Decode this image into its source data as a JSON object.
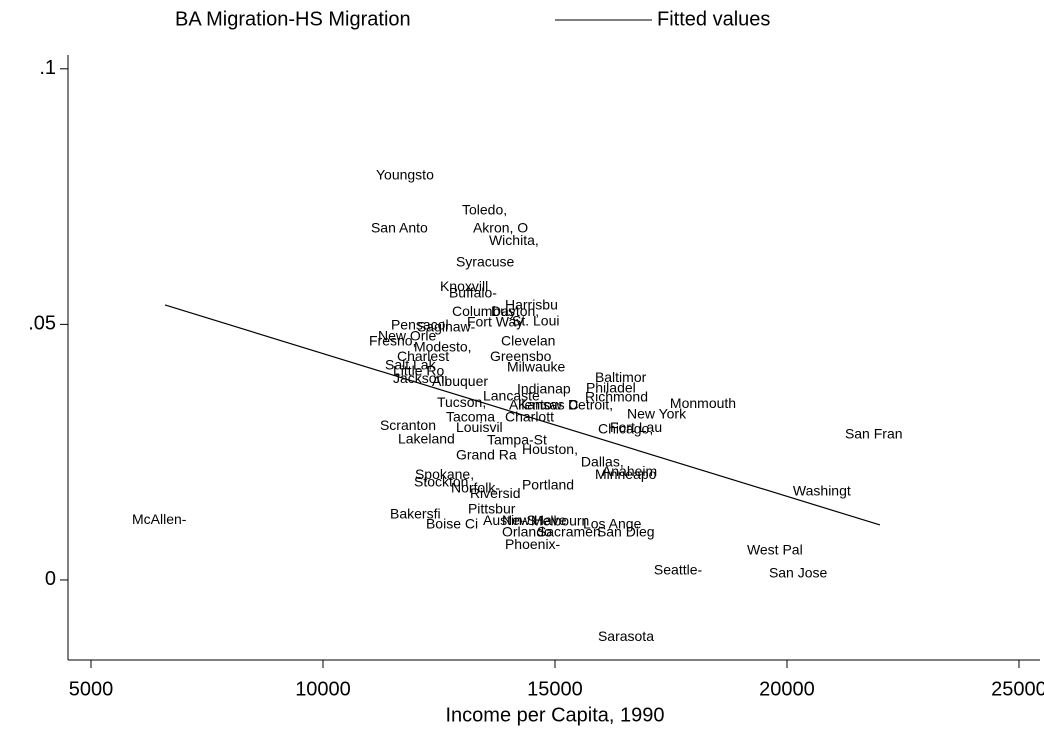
{
  "chart_data": {
    "type": "scatter",
    "x_label": "Income per Capita, 1990",
    "xlim": [
      4504,
      25453
    ],
    "ylim": [
      -0.01566,
      0.1027
    ],
    "xticks": [
      5000,
      10000,
      15000,
      20000,
      25000
    ],
    "yticks": [
      0,
      {
        "value": 0.05,
        "label": ".05"
      },
      {
        "value": 0.1,
        "label": ".1"
      }
    ],
    "series": [
      {
        "name": "BA Migration-HS Migration",
        "type": "scatter",
        "color": "#000000",
        "labels": [
          "Youngsto",
          "Toledo,",
          "San Anto",
          "Akron, O",
          "Wichita,",
          "Syracuse",
          "Knoxvill",
          "Buffalo-",
          "Harrisbu",
          "Columbus",
          "Dayton,",
          "Fort Way",
          "St. Loui",
          "Pensacol",
          "Saginaw-",
          "New Orle",
          "Fresno,",
          "Modesto,",
          "Clevelan",
          "Charlest",
          "Greensbo",
          "Salt Lak",
          "Milwauke",
          "Little Ro",
          "Jackson,",
          "Albuquer",
          "Baltimor",
          "Indianap",
          "Philadel",
          "Lancaste",
          "Richmond",
          "Tucson,",
          "Allentow",
          "Kansas C",
          "Detroit,",
          "Monmouth",
          "New York",
          "Tacoma",
          "Charlott",
          "Fort Lau",
          "Chicago,",
          "Scranton",
          "Louisvil",
          "San Fran",
          "Lakeland",
          "Tampa-St",
          "Houston,",
          "Grand Ra",
          "Dallas,",
          "Anaheim",
          "Minneapo",
          "Spokane,",
          "Stockton",
          "Norfolk-",
          "Portland",
          "Washingt",
          "Riversid",
          "McAllen-",
          "Pittsbur",
          "Bakersfi",
          "Austin-S",
          "Boise Ci",
          "New Have",
          "Melbourn",
          "Los Ange",
          "Orlando",
          "Sacramen",
          "San Dieg",
          "Phoenix-",
          "West Pal",
          "Seattle-",
          "San Jose",
          "Sarasota"
        ],
        "x": [
          11142,
          12995,
          11034,
          13232,
          13577,
          12866,
          12521,
          12715,
          13922,
          12780,
          13620,
          13103,
          14073,
          11465,
          12025,
          11185,
          10991,
          11961,
          13836,
          11594,
          13599,
          11336,
          13965,
          11508,
          11508,
          12349,
          15861,
          14180,
          15667,
          13448,
          15646,
          12456,
          14008,
          14202,
          15279,
          17477,
          16551,
          12650,
          13922,
          16185,
          15926,
          11228,
          12866,
          21249,
          11616,
          13534,
          14288,
          12866,
          15559,
          16012,
          15861,
          11982,
          11961,
          12758,
          14288,
          20128,
          13167,
          5884,
          13124,
          11444,
          13448,
          12219,
          13857,
          14482,
          15603,
          13857,
          14611,
          15904,
          13922,
          19137,
          17132,
          19611,
          15926
        ],
        "values": [
          0.0791,
          0.0722,
          0.0687,
          0.0687,
          0.0663,
          0.062,
          0.0573,
          0.056,
          0.0536,
          0.0524,
          0.0524,
          0.0503,
          0.0505,
          0.0497,
          0.0493,
          0.0476,
          0.0466,
          0.0454,
          0.0466,
          0.0436,
          0.0436,
          0.0419,
          0.0415,
          0.0407,
          0.0393,
          0.0387,
          0.0395,
          0.0372,
          0.0374,
          0.0358,
          0.0356,
          0.0346,
          0.0341,
          0.0341,
          0.0341,
          0.0344,
          0.0323,
          0.0317,
          0.0317,
          0.0297,
          0.0294,
          0.0301,
          0.0297,
          0.0284,
          0.0274,
          0.0272,
          0.0254,
          0.0243,
          0.0229,
          0.0211,
          0.0205,
          0.0205,
          0.019,
          0.0178,
          0.0184,
          0.0172,
          0.0168,
          0.0117,
          0.0137,
          0.0127,
          0.0115,
          0.0108,
          0.0115,
          0.0114,
          0.0108,
          0.0092,
          0.0092,
          0.0092,
          0.0068,
          0.0057,
          0.0018,
          0.0012,
          -0.0112
        ]
      },
      {
        "name": "Fitted values",
        "type": "line",
        "color": "#000000",
        "x": [
          6595,
          22004
        ],
        "values": [
          0.0538,
          0.01076
        ]
      }
    ]
  }
}
